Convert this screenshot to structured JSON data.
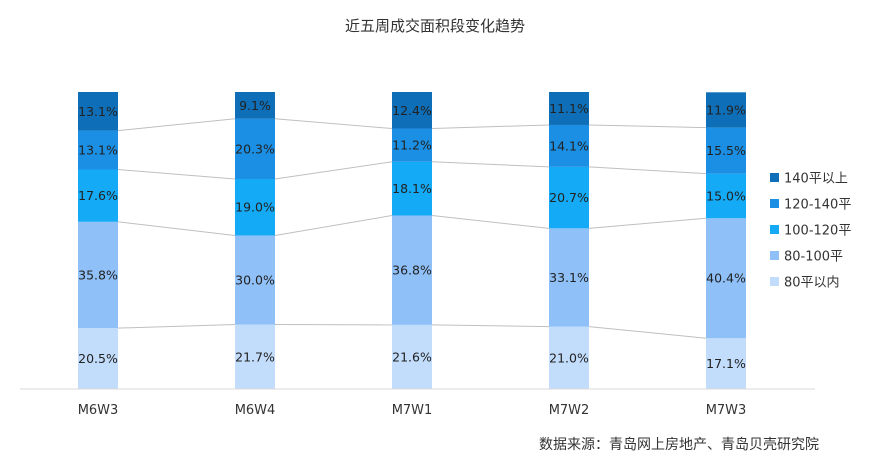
{
  "chart_data": {
    "type": "bar",
    "stacked": true,
    "title": "近五周成交面积段变化趋势",
    "categories": [
      "M6W3",
      "M6W4",
      "M7W1",
      "M7W2",
      "M7W3"
    ],
    "series": [
      {
        "name": "80平以内",
        "color": "#c2dcfb",
        "values": [
          20.5,
          21.7,
          21.6,
          21.0,
          17.1
        ]
      },
      {
        "name": "80-100平",
        "color": "#8fc0f8",
        "values": [
          35.8,
          30.0,
          36.8,
          33.1,
          40.4
        ]
      },
      {
        "name": "100-120平",
        "color": "#14aaf5",
        "values": [
          17.6,
          19.0,
          18.1,
          20.7,
          15.0
        ]
      },
      {
        "name": "120-140平",
        "color": "#1b8fe3",
        "values": [
          13.1,
          20.3,
          11.2,
          14.1,
          15.5
        ]
      },
      {
        "name": "140平以上",
        "color": "#0e6fb8",
        "values": [
          13.1,
          9.1,
          12.4,
          11.1,
          11.9
        ]
      }
    ],
    "ylim": [
      0,
      100
    ],
    "grid": false,
    "legend": "right",
    "connector_lines": true,
    "source": "数据来源：青岛网上房地产、青岛贝壳研究院"
  }
}
